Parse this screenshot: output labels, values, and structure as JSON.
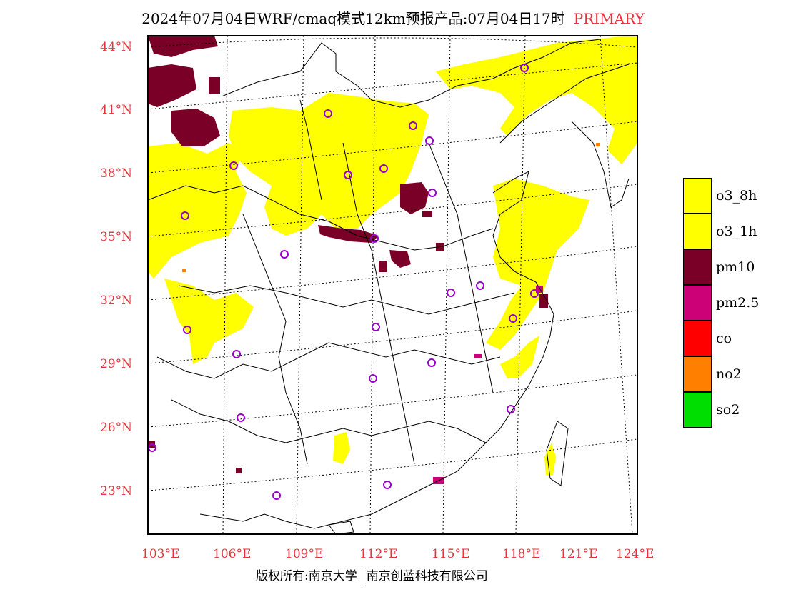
{
  "header": {
    "title": "2024年07月04日WRF/cmaq模式12km预报产品:07月04日17时",
    "tag": "PRIMARY"
  },
  "axes": {
    "lat_labels": [
      "44°N",
      "41°N",
      "38°N",
      "35°N",
      "32°N",
      "29°N",
      "26°N",
      "23°N"
    ],
    "lon_labels": [
      "103°E",
      "106°E",
      "109°E",
      "112°E",
      "115°E",
      "118°E",
      "121°E",
      "124°E"
    ]
  },
  "legend": {
    "items": [
      {
        "label": "o3_8h",
        "color": "#ffff00"
      },
      {
        "label": "o3_1h",
        "color": "#ffff00"
      },
      {
        "label": "pm10",
        "color": "#7a0028"
      },
      {
        "label": "pm2.5",
        "color": "#cc0077"
      },
      {
        "label": "co",
        "color": "#ff0000"
      },
      {
        "label": "no2",
        "color": "#ff7f00"
      },
      {
        "label": "so2",
        "color": "#00dd00"
      }
    ]
  },
  "colors": {
    "label_red": "#e8323c",
    "city_marker": "#9900cc"
  },
  "footer": {
    "left": "版权所有:南京大学",
    "right": "南京创蓝科技有限公司"
  }
}
